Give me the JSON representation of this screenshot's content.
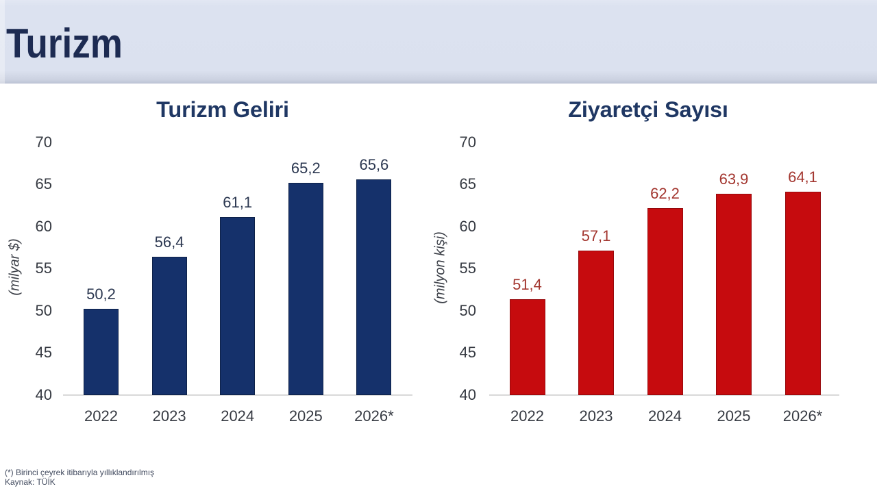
{
  "page": {
    "title": "Turizm"
  },
  "colors": {
    "banner_bg": "#dbe1ef",
    "page_title": "#1d2b52",
    "chart_title": "#1f3763",
    "navy_bar": "#15316b",
    "navy_bar_border": "#0d2148",
    "red_bar": "#c60b0e",
    "red_bar_border": "#97080b",
    "navy_value_label": "#2b3750",
    "red_value_label": "#a3362f",
    "tick_text": "#363a42",
    "axis_line": "#d9d9d9"
  },
  "footnote": {
    "line1": "(*) Birinci çeyrek itibarıyla yıllıklandırılmış",
    "line2": "Kaynak: TÜİK"
  },
  "chart_data": [
    {
      "type": "bar",
      "title": "Turizm Geliri",
      "xlabel": "",
      "ylabel": "(milyar $)",
      "categories": [
        "2022",
        "2023",
        "2024",
        "2025",
        "2026*"
      ],
      "values": [
        50.2,
        56.4,
        61.1,
        65.2,
        65.6
      ],
      "value_labels": [
        "50,2",
        "56,4",
        "61,1",
        "65,2",
        "65,6"
      ],
      "ylim": [
        40,
        70
      ],
      "yticks": [
        40,
        45,
        50,
        55,
        60,
        65,
        70
      ],
      "grid": false,
      "legend_position": "none",
      "bar_color": "#15316b",
      "bar_border_color": "#0d2148",
      "value_label_color": "#2b3750"
    },
    {
      "type": "bar",
      "title": "Ziyaretçi Sayısı",
      "xlabel": "",
      "ylabel": "(milyon kişi)",
      "categories": [
        "2022",
        "2023",
        "2024",
        "2025",
        "2026*"
      ],
      "values": [
        51.4,
        57.1,
        62.2,
        63.9,
        64.1
      ],
      "value_labels": [
        "51,4",
        "57,1",
        "62,2",
        "63,9",
        "64,1"
      ],
      "ylim": [
        40,
        70
      ],
      "yticks": [
        40,
        45,
        50,
        55,
        60,
        65,
        70
      ],
      "grid": false,
      "legend_position": "none",
      "bar_color": "#c60b0e",
      "bar_border_color": "#97080b",
      "value_label_color": "#a3362f"
    }
  ]
}
